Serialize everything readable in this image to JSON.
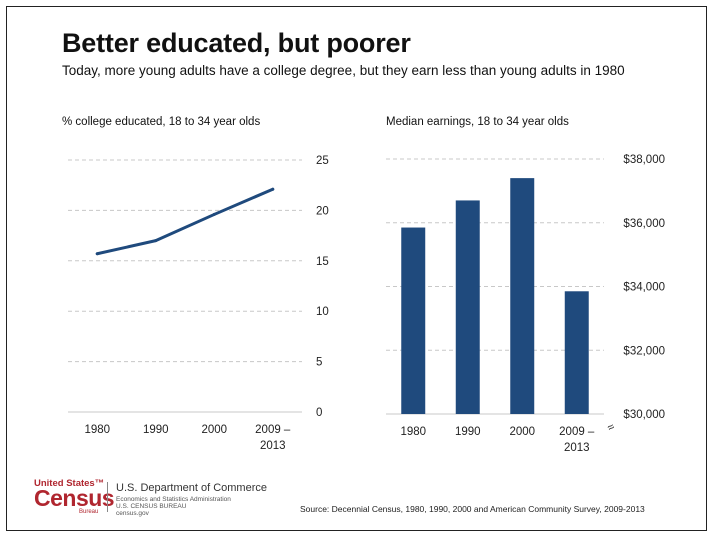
{
  "title": "Better educated, but poorer",
  "subtitle": "Today, more young adults have a college degree, but they earn less than young adults in 1980",
  "colors": {
    "series": "#1f4a7d",
    "grid": "#c8c8c8",
    "brand_red": "#b0262f"
  },
  "chart_data": [
    {
      "type": "line",
      "title": "% college educated, 18 to 34 year olds",
      "categories": [
        "1980",
        "1990",
        "2000",
        "2009 – 2013"
      ],
      "category_lines": [
        [
          "1980"
        ],
        [
          "1990"
        ],
        [
          "2000"
        ],
        [
          "2009 –",
          "2013"
        ]
      ],
      "values": [
        15.7,
        17.0,
        19.6,
        22.1
      ],
      "ylim": [
        0,
        25
      ],
      "yticks": [
        0,
        5,
        10,
        15,
        20,
        25
      ],
      "ytick_labels": [
        "0",
        "5",
        "10",
        "15",
        "20",
        "25"
      ],
      "yaxis_side": "right",
      "grid": true
    },
    {
      "type": "bar",
      "title": "Median earnings, 18 to 34 year olds",
      "categories": [
        "1980",
        "1990",
        "2000",
        "2009 – 2013"
      ],
      "category_lines": [
        [
          "1980"
        ],
        [
          "1990"
        ],
        [
          "2000"
        ],
        [
          "2009 –",
          "2013"
        ]
      ],
      "values": [
        35850,
        36700,
        37400,
        33850
      ],
      "ylim": [
        30000,
        38000
      ],
      "yticks": [
        30000,
        32000,
        34000,
        36000,
        38000
      ],
      "ytick_labels": [
        "$30,000",
        "$32,000",
        "$34,000",
        "$36,000",
        "$38,000"
      ],
      "yaxis_side": "right",
      "axis_break": true,
      "axis_break_symbol": "≈",
      "grid": true
    }
  ],
  "footer": {
    "logo_united_states": "United States™",
    "logo_census": "Census",
    "logo_bureau": "Bureau",
    "department": "U.S. Department of Commerce",
    "department_lines": [
      "Economics and Statistics Administration",
      "U.S. CENSUS BUREAU",
      "census.gov"
    ],
    "source": "Source: Decennial Census, 1980, 1990, 2000 and American Community Survey, 2009-2013"
  }
}
